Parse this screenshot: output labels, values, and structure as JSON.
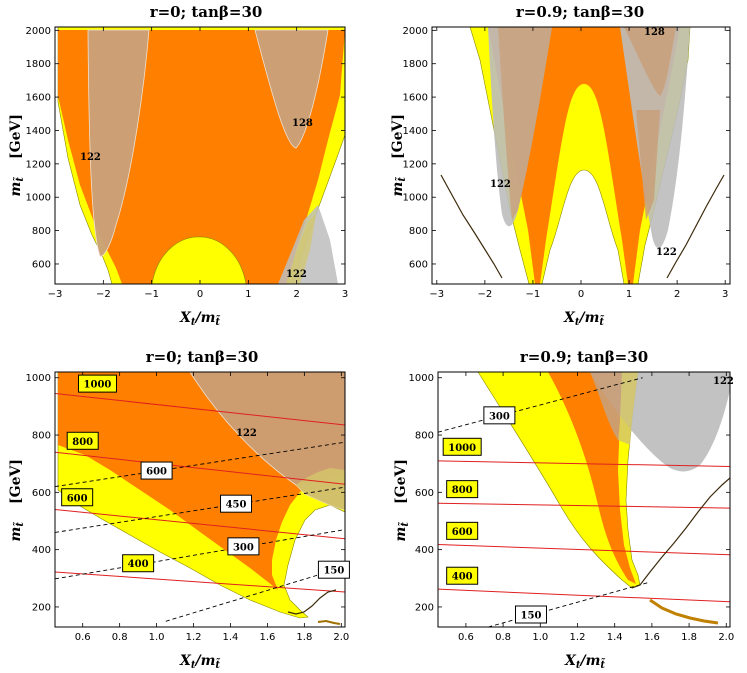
{
  "colors": {
    "orange": "#ff8000",
    "yellow": "#ffff00",
    "gray": "#b9b9b9",
    "red": "#e02020",
    "dashed": "#000000",
    "curve": "#3c2a0c"
  },
  "chart_data": [
    {
      "id": "p1",
      "type": "region",
      "title": "r=0; tanβ=30",
      "xlabel": "X_t/m_t̃",
      "ylabel": "m_t̃  [GeV]",
      "xlim": [
        -3,
        3
      ],
      "ylim": [
        480,
        2020
      ],
      "xticks": [
        "-3",
        "-2",
        "-1",
        "0",
        "1",
        "2",
        "3"
      ],
      "yticks": [
        "600",
        "800",
        "1000",
        "1200",
        "1400",
        "1600",
        "1800",
        "2000"
      ],
      "annotations": [
        {
          "text": "122",
          "x": -2.45,
          "y": 1220
        },
        {
          "text": "128",
          "x": 2.28,
          "y": 1400
        },
        {
          "text": "122",
          "x": 2.2,
          "y": 530
        }
      ]
    },
    {
      "id": "p2",
      "type": "region",
      "title": "r=0.9; tanβ=30",
      "xlabel": "X_t/m_t̃",
      "ylabel": "m_t̃  [GeV]",
      "xlim": [
        -3.1,
        3.1
      ],
      "ylim": [
        480,
        2020
      ],
      "xticks": [
        "-3",
        "-2",
        "-1",
        "0",
        "1",
        "2",
        "3"
      ],
      "yticks": [
        "600",
        "800",
        "1000",
        "1200",
        "1400",
        "1600",
        "1800",
        "2000"
      ],
      "annotations": [
        {
          "text": "122",
          "x": -1.95,
          "y": 1130
        },
        {
          "text": "128",
          "x": 1.55,
          "y": 1985
        },
        {
          "text": "122",
          "x": 1.75,
          "y": 700
        }
      ]
    },
    {
      "id": "p3",
      "type": "region",
      "title": "r=0; tanβ=30",
      "xlabel": "X_t/m_t̃",
      "ylabel": "m_t̃  [GeV]",
      "xlim": [
        0.45,
        2.02
      ],
      "ylim": [
        130,
        1020
      ],
      "xticks": [
        "0.6",
        "0.8",
        "1.0",
        "1.2",
        "1.4",
        "1.6",
        "1.8",
        "2.0"
      ],
      "yticks": [
        "200",
        "400",
        "600",
        "800",
        "1000"
      ],
      "contours_red": [
        {
          "label": "1000",
          "y_left": 945,
          "y_right": 835,
          "label_x": 0.68
        },
        {
          "label": "800",
          "y_left": 740,
          "y_right": 628,
          "label_x": 0.6
        },
        {
          "label": "600",
          "y_left": 540,
          "y_right": 438,
          "label_x": 0.57
        },
        {
          "label": "400",
          "y_left": 322,
          "y_right": 252,
          "label_x": 0.9
        }
      ],
      "contours_dashed": [
        {
          "label": "600",
          "y_left": 620,
          "y_right": 775,
          "label_x": 1.0
        },
        {
          "label": "450",
          "y_left": 460,
          "y_right": 618,
          "label_x": 1.43
        },
        {
          "label": "300",
          "y_left": 298,
          "y_right": 470,
          "label_x": 1.47
        },
        {
          "label": "150",
          "x_left": 1.05,
          "y_left": 150,
          "y_right": 340,
          "label_x": 1.96
        }
      ],
      "annotations": [
        {
          "text": "122",
          "x": 1.41,
          "y": 770
        }
      ]
    },
    {
      "id": "p4",
      "type": "region",
      "title": "r=0.9; tanβ=30",
      "xlabel": "X_t/m_t̃",
      "ylabel": "m_t̃  [GeV]",
      "xlim": [
        0.45,
        2.02
      ],
      "ylim": [
        130,
        1020
      ],
      "xticks": [
        "0.6",
        "0.8",
        "1.0",
        "1.2",
        "1.4",
        "1.6",
        "1.8",
        "2.0"
      ],
      "yticks": [
        "200",
        "400",
        "600",
        "800",
        "1000"
      ],
      "contours_red": [
        {
          "label": "1000",
          "y_left": 710,
          "y_right": 690,
          "label_x": 0.58
        },
        {
          "label": "800",
          "y_left": 562,
          "y_right": 545,
          "label_x": 0.58
        },
        {
          "label": "600",
          "y_left": 418,
          "y_right": 382,
          "label_x": 0.58
        },
        {
          "label": "400",
          "y_left": 262,
          "y_right": 218,
          "label_x": 0.58
        }
      ],
      "contours_dashed": [
        {
          "label": "300",
          "x_left": 0.45,
          "y_left": 810,
          "x_right": 1.55,
          "y_right": 1000,
          "label_x": 0.78
        },
        {
          "label": "150",
          "x_left": 0.72,
          "y_left": 130,
          "x_right": 1.58,
          "y_right": 285,
          "label_x": 0.95
        }
      ],
      "annotations": [
        {
          "text": "122",
          "x": 1.98,
          "y": 985
        }
      ]
    }
  ]
}
